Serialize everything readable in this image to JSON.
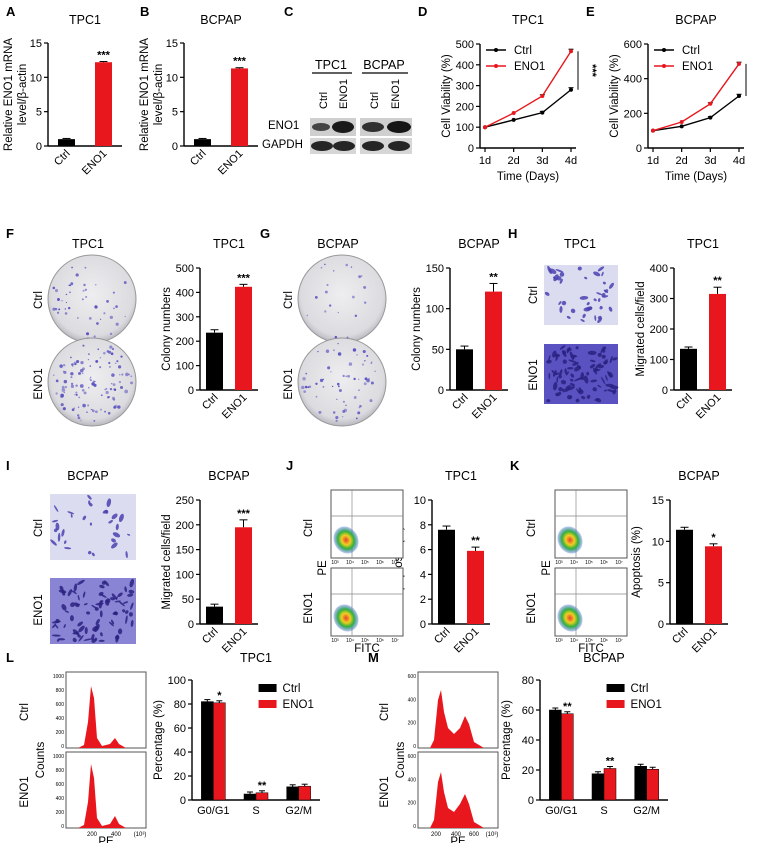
{
  "colors": {
    "ctrl": "#000000",
    "eno1": "#e8171e",
    "stain": "#5a52c0",
    "stain_bg": "#dcdcf0"
  },
  "panel_letters": [
    "A",
    "B",
    "C",
    "D",
    "E",
    "F",
    "G",
    "H",
    "I",
    "J",
    "K",
    "L",
    "M"
  ],
  "row_labels": {
    "ctrl": "Ctrl",
    "eno1": "ENO1"
  },
  "western": {
    "titles": [
      "TPC1",
      "BCPAP"
    ],
    "lanes": [
      "Ctrl",
      "ENO1",
      "Ctrl",
      "ENO1"
    ],
    "bands": [
      "ENO1",
      "GAPDH"
    ]
  },
  "images": {
    "F": {
      "title": "TPC1"
    },
    "G": {
      "title": "BCPAP"
    },
    "H": {
      "title": "TPC1"
    },
    "I": {
      "title": "BCPAP"
    },
    "J": {
      "xlabel": "FITC",
      "ylabel": "PE",
      "ticks": [
        "10³",
        "10⁴",
        "10⁵",
        "10⁶",
        "10⁷"
      ]
    },
    "K": {
      "xlabel": "FITC",
      "ylabel": "PE",
      "ticks": [
        "10³",
        "10⁴",
        "10⁵",
        "10⁶",
        "10⁷"
      ]
    },
    "L": {
      "xlabel": "PE",
      "ylabel": "Counts",
      "ticks": [
        "200",
        "400",
        "(10³)"
      ],
      "yticks": [
        "1000",
        "800",
        "600",
        "400",
        "200",
        "0"
      ]
    },
    "M": {
      "xlabel": "PE",
      "ylabel": "Counts",
      "ticks": [
        "200",
        "400",
        "600",
        "(10³)"
      ],
      "yticks": [
        "600",
        "400",
        "200",
        "0"
      ]
    }
  },
  "chart_data": [
    {
      "id": "A",
      "type": "bar",
      "title": "TPC1",
      "categories": [
        "Ctrl",
        "ENO1"
      ],
      "values": [
        1,
        12.2
      ],
      "errors": [
        0.1,
        0.1
      ],
      "ylabel": "Relative ENO1 mRNA level/β-actin",
      "ylim": [
        0,
        15
      ],
      "yticks": [
        0,
        5,
        10,
        15
      ],
      "annotations": [
        {
          "index": 1,
          "text": "***"
        }
      ]
    },
    {
      "id": "B",
      "type": "bar",
      "title": "BCPAP",
      "categories": [
        "Ctrl",
        "ENO1"
      ],
      "values": [
        1,
        11.3
      ],
      "errors": [
        0.1,
        0.1
      ],
      "ylabel": "Relative ENO1 mRNA level/β-actin",
      "ylim": [
        0,
        15
      ],
      "yticks": [
        0,
        5,
        10,
        15
      ],
      "annotations": [
        {
          "index": 1,
          "text": "***"
        }
      ]
    },
    {
      "id": "D",
      "type": "line",
      "title": "TPC1",
      "categories": [
        "1d",
        "2d",
        "3d",
        "4d"
      ],
      "series": [
        {
          "name": "Ctrl",
          "values": [
            100,
            135,
            170,
            280
          ],
          "errors": [
            0,
            0,
            6,
            10
          ]
        },
        {
          "name": "ENO1",
          "values": [
            100,
            168,
            250,
            465
          ],
          "errors": [
            0,
            0,
            6,
            10
          ]
        }
      ],
      "ylabel": "Cell Viability (%)",
      "xlabel": "Time (Days)",
      "ylim": [
        0,
        500
      ],
      "yticks": [
        0,
        100,
        200,
        300,
        400,
        500
      ],
      "legend": "top-left",
      "annotations": [
        {
          "text": "***"
        }
      ]
    },
    {
      "id": "E",
      "type": "line",
      "title": "BCPAP",
      "categories": [
        "1d",
        "2d",
        "3d",
        "4d"
      ],
      "series": [
        {
          "name": "Ctrl",
          "values": [
            100,
            125,
            175,
            300
          ],
          "errors": [
            0,
            0,
            6,
            10
          ]
        },
        {
          "name": "ENO1",
          "values": [
            100,
            150,
            255,
            485
          ],
          "errors": [
            0,
            0,
            6,
            10
          ]
        }
      ],
      "ylabel": "Cell Viability (%)",
      "xlabel": "Time (Days)",
      "ylim": [
        0,
        600
      ],
      "yticks": [
        0,
        200,
        400,
        600
      ],
      "legend": "top-left",
      "annotations": [
        {
          "text": "***"
        }
      ]
    },
    {
      "id": "F",
      "type": "bar",
      "title": "TPC1",
      "categories": [
        "Ctrl",
        "ENO1"
      ],
      "values": [
        235,
        423
      ],
      "errors": [
        12,
        10
      ],
      "ylabel": "Colony numbers",
      "ylim": [
        0,
        500
      ],
      "yticks": [
        0,
        100,
        200,
        300,
        400,
        500
      ],
      "annotations": [
        {
          "index": 1,
          "text": "***"
        }
      ]
    },
    {
      "id": "G",
      "type": "bar",
      "title": "BCPAP",
      "categories": [
        "Ctrl",
        "ENO1"
      ],
      "values": [
        50,
        121
      ],
      "errors": [
        4,
        10
      ],
      "ylabel": "Colony numbers",
      "ylim": [
        0,
        150
      ],
      "yticks": [
        0,
        50,
        100,
        150
      ],
      "annotations": [
        {
          "index": 1,
          "text": "**"
        }
      ]
    },
    {
      "id": "H",
      "type": "bar",
      "title": "TPC1",
      "categories": [
        "Ctrl",
        "ENO1"
      ],
      "values": [
        135,
        315
      ],
      "errors": [
        6,
        22
      ],
      "ylabel": "Migrated cells/field",
      "ylim": [
        0,
        400
      ],
      "yticks": [
        0,
        100,
        200,
        300,
        400
      ],
      "annotations": [
        {
          "index": 1,
          "text": "**"
        }
      ]
    },
    {
      "id": "I",
      "type": "bar",
      "title": "BCPAP",
      "categories": [
        "Ctrl",
        "ENO1"
      ],
      "values": [
        35,
        195
      ],
      "errors": [
        5,
        15
      ],
      "ylabel": "Migrated cells/field",
      "ylim": [
        0,
        250
      ],
      "yticks": [
        0,
        50,
        100,
        150,
        200,
        250
      ],
      "annotations": [
        {
          "index": 1,
          "text": "***"
        }
      ]
    },
    {
      "id": "J",
      "type": "bar",
      "title": "TPC1",
      "categories": [
        "Ctrl",
        "ENO1"
      ],
      "values": [
        7.6,
        5.9
      ],
      "errors": [
        0.3,
        0.3
      ],
      "ylabel": "Apoptosis (%)",
      "ylim": [
        0,
        10
      ],
      "yticks": [
        0,
        2,
        4,
        6,
        8,
        10
      ],
      "annotations": [
        {
          "index": 1,
          "text": "**"
        }
      ]
    },
    {
      "id": "K",
      "type": "bar",
      "title": "BCPAP",
      "categories": [
        "Ctrl",
        "ENO1"
      ],
      "values": [
        11.4,
        9.4
      ],
      "errors": [
        0.3,
        0.3
      ],
      "ylabel": "Apoptosis (%)",
      "ylim": [
        0,
        15
      ],
      "yticks": [
        0,
        5,
        10,
        15
      ],
      "annotations": [
        {
          "index": 1,
          "text": "*"
        }
      ]
    },
    {
      "id": "L",
      "type": "bar",
      "title": "TPC1",
      "categories": [
        "G0/G1",
        "S",
        "G2/M"
      ],
      "series": [
        {
          "name": "Ctrl",
          "values": [
            82,
            5,
            11
          ]
        },
        {
          "name": "ENO1",
          "values": [
            81,
            6,
            11.5
          ]
        }
      ],
      "ylabel": "Percentage (%)",
      "ylim": [
        0,
        100
      ],
      "yticks": [
        0,
        20,
        40,
        60,
        80,
        100
      ],
      "legend": "top-right",
      "annotations": [
        {
          "index": 0,
          "text": "*"
        },
        {
          "index": 1,
          "text": "**"
        }
      ]
    },
    {
      "id": "M",
      "type": "bar",
      "title": "BCPAP",
      "categories": [
        "G0/G1",
        "S",
        "G2/M"
      ],
      "series": [
        {
          "name": "Ctrl",
          "values": [
            60,
            17.5,
            22.5
          ]
        },
        {
          "name": "ENO1",
          "values": [
            57.5,
            21,
            20.5
          ]
        }
      ],
      "ylabel": "Percentage (%)",
      "ylim": [
        0,
        80
      ],
      "yticks": [
        0,
        20,
        40,
        60,
        80
      ],
      "legend": "top-right",
      "annotations": [
        {
          "index": 0,
          "text": "**"
        },
        {
          "index": 1,
          "text": "**"
        }
      ]
    }
  ]
}
